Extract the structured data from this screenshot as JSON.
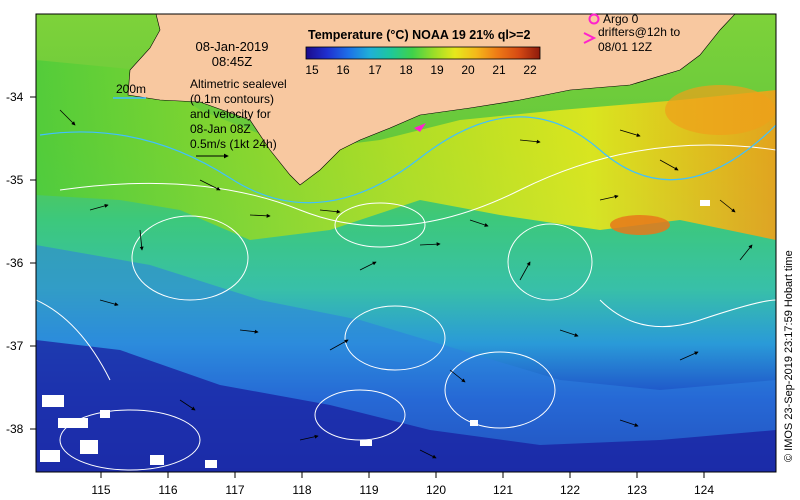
{
  "map": {
    "title": "Temperature (°C) NOAA 19 21% ql>=2",
    "date": "08-Jan-2019",
    "time": "08:45Z",
    "contour_label": "200m",
    "info_lines": [
      "Altimetric sealevel",
      "(0.1m contours)",
      "and velocity for",
      "08-Jan 08Z",
      "0.5m/s (1kt 24h)"
    ],
    "argo_label": "Argo 0",
    "drifter_lines": [
      "drifters@12h to",
      "08/01 12Z"
    ],
    "credit": "© IMOS 23-Sep-2019 23:17:59 Hobart time",
    "colorbar": {
      "ticks": [
        "15",
        "16",
        "17",
        "18",
        "19",
        "20",
        "21",
        "22"
      ],
      "colors": [
        "#1a0a8c",
        "#1f30d0",
        "#1d70e8",
        "#1fb0d8",
        "#1ec89a",
        "#3fd24a",
        "#9ade28",
        "#e6e81c",
        "#f4b81a",
        "#ee7a16",
        "#d64a14",
        "#8e1a0c"
      ]
    },
    "x_axis": {
      "ticks": [
        "115",
        "116",
        "117",
        "118",
        "119",
        "120",
        "121",
        "122",
        "123",
        "124"
      ]
    },
    "y_axis": {
      "ticks": [
        "-34",
        "-35",
        "-36",
        "-37",
        "-38"
      ]
    },
    "colors": {
      "land": "#f8c8a0",
      "argo": "#ff22cc",
      "contour_200m": "#40c0ff"
    }
  }
}
